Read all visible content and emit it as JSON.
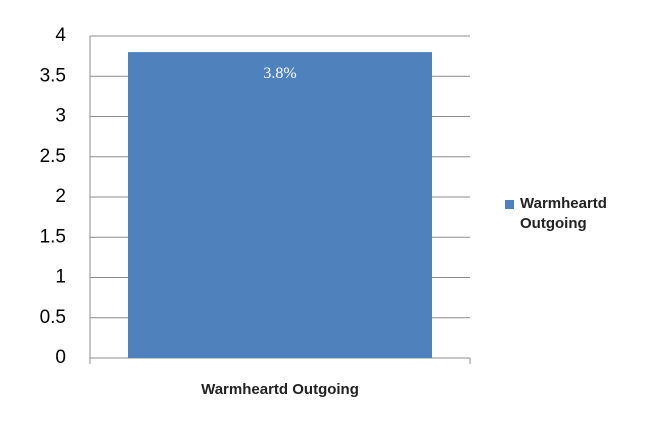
{
  "chart_data": {
    "type": "bar",
    "categories": [
      "Warmheartd Outgoing"
    ],
    "series": [
      {
        "name": "Warmheartd Outgoing",
        "color": "#4f81bd",
        "values": [
          3.8
        ],
        "value_labels": [
          "3.8%"
        ]
      }
    ],
    "ylim": [
      0,
      4
    ],
    "yticks": [
      0,
      0.5,
      1,
      1.5,
      2,
      2.5,
      3,
      3.5,
      4
    ],
    "grid": true,
    "legend": "right"
  }
}
